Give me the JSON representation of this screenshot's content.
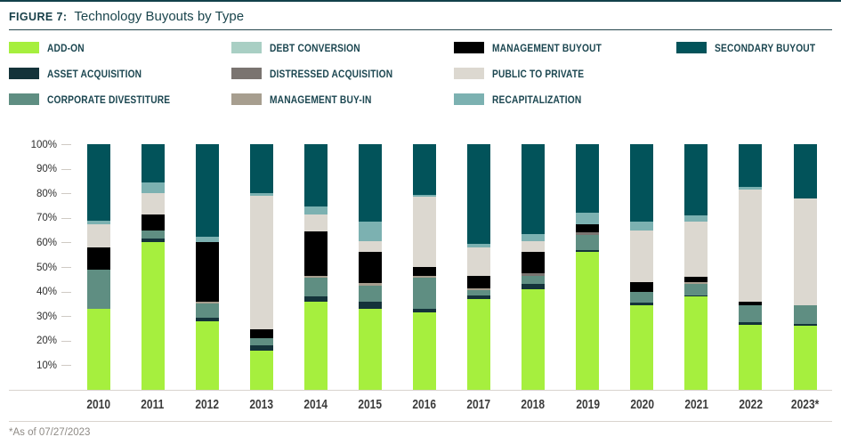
{
  "figure": {
    "label": "FIGURE 7:",
    "title": "Technology Buyouts by Type"
  },
  "footnote": "*As of 07/27/2023",
  "colors": {
    "accent_dark_teal": "#02535a",
    "title_text": "#1a454d",
    "legend_text": "#1b4650",
    "axis_line": "#d9d4ce",
    "footnote_text": "#8f8b86"
  },
  "chart_data": {
    "type": "bar",
    "subtype": "100%-stacked-vertical",
    "title": "Technology Buyouts by Type",
    "xlabel": "",
    "ylabel": "",
    "ylim": [
      0,
      100
    ],
    "grid": false,
    "legend_position": "top",
    "yticks": [
      "100%",
      "90%",
      "80%",
      "70%",
      "60%",
      "50%",
      "40%",
      "30%",
      "20%",
      "10%"
    ],
    "categories": [
      "2010",
      "2011",
      "2012",
      "2013",
      "2014",
      "2015",
      "2016",
      "2017",
      "2018",
      "2019",
      "2020",
      "2021",
      "2022",
      "2023*"
    ],
    "series": [
      {
        "name": "ADD-ON",
        "color": "#a6ef3e",
        "values": [
          33,
          60,
          28,
          16,
          36,
          33,
          31.5,
          37,
          41,
          56,
          34.5,
          38,
          26.5,
          26
        ]
      },
      {
        "name": "ASSET ACQUISITION",
        "color": "#14333a",
        "values": [
          0,
          1.5,
          1.5,
          2,
          2,
          3,
          1.5,
          1.5,
          2,
          1,
          1,
          0.5,
          1,
          1
        ]
      },
      {
        "name": "CORPORATE DIVESTITURE",
        "color": "#5f8e82",
        "values": [
          16,
          3.5,
          5.5,
          3,
          7.5,
          6.5,
          12.5,
          2,
          3.5,
          6,
          4.5,
          4.5,
          7,
          7.5
        ]
      },
      {
        "name": "DEBT CONVERSION",
        "color": "#a9cfc4",
        "values": [
          0,
          0,
          0,
          0,
          0,
          0,
          0,
          0,
          0,
          0,
          0,
          0,
          0,
          0
        ]
      },
      {
        "name": "DISTRESSED ACQUISITION",
        "color": "#7a7470",
        "values": [
          0,
          0,
          0,
          0,
          0,
          0,
          0,
          0,
          1,
          1,
          0,
          0,
          0,
          0
        ]
      },
      {
        "name": "MANAGEMENT BUY-IN",
        "color": "#a79e8f",
        "values": [
          0,
          0,
          1,
          0,
          1,
          1,
          1,
          1,
          0,
          0,
          0,
          1,
          0,
          0
        ]
      },
      {
        "name": "MANAGEMENT BUYOUT",
        "color": "#000000",
        "values": [
          9,
          6.5,
          24,
          3.5,
          18,
          12.5,
          3.5,
          5,
          8.5,
          3.5,
          4,
          2,
          1.5,
          0
        ]
      },
      {
        "name": "PUBLIC TO PRIVATE",
        "color": "#dcd8d0",
        "values": [
          9.5,
          8.5,
          0,
          54.5,
          7,
          4.5,
          28.5,
          11.5,
          4.5,
          0,
          21,
          22.5,
          45.5,
          43.5
        ]
      },
      {
        "name": "RECAPITALIZATION",
        "color": "#7cb1b1",
        "values": [
          1.5,
          4.5,
          2.5,
          1,
          3,
          8,
          1,
          1.5,
          3,
          4.5,
          3.5,
          2.5,
          1,
          0
        ]
      },
      {
        "name": "SECONDARY BUYOUT",
        "color": "#02535a",
        "values": [
          31,
          15.5,
          37.5,
          20,
          25.5,
          31.5,
          20.5,
          40.5,
          36.5,
          28,
          31.5,
          29,
          17.5,
          22
        ]
      }
    ]
  }
}
